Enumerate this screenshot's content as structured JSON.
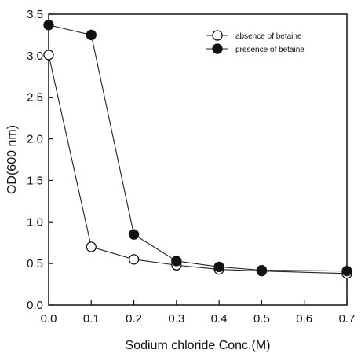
{
  "chart_data": {
    "type": "line",
    "title": "",
    "xlabel": "Sodium chloride Conc.(M)",
    "ylabel": "OD(600 nm)",
    "xlim": [
      0.0,
      0.7
    ],
    "ylim": [
      0.0,
      3.5
    ],
    "x_ticks": [
      "0.0",
      "0.1",
      "0.2",
      "0.3",
      "0.4",
      "0.5",
      "0.6",
      "0.7"
    ],
    "y_ticks": [
      "0.0",
      "0.5",
      "1.0",
      "1.5",
      "2.0",
      "2.5",
      "3.0",
      "3.5"
    ],
    "grid": false,
    "legend_position": "top-right",
    "series": [
      {
        "name": "absence of betaine",
        "marker": "open-circle",
        "x": [
          0.0,
          0.1,
          0.2,
          0.3,
          0.4,
          0.5,
          0.7
        ],
        "y": [
          3.01,
          0.7,
          0.55,
          0.48,
          0.43,
          0.41,
          0.38
        ]
      },
      {
        "name": "presence of betaine",
        "marker": "filled-circle",
        "x": [
          0.0,
          0.1,
          0.2,
          0.3,
          0.4,
          0.5,
          0.7
        ],
        "y": [
          3.37,
          3.25,
          0.85,
          0.53,
          0.46,
          0.42,
          0.41
        ]
      }
    ]
  }
}
